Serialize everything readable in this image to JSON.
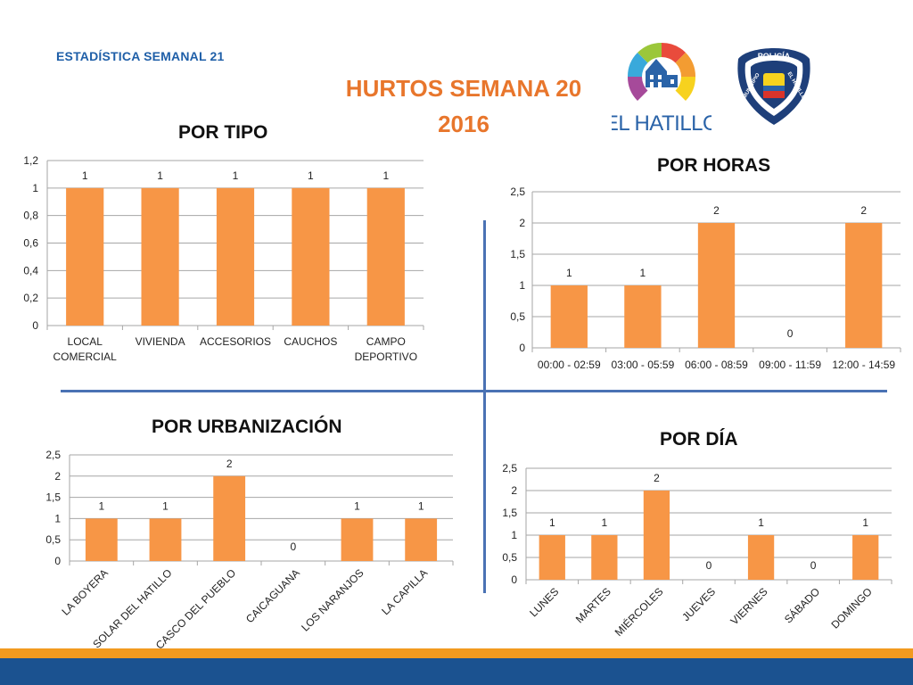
{
  "header": {
    "label": "ESTADÍSTICA SEMANAL 21",
    "title": "HURTOS SEMANA 20",
    "year": "2016"
  },
  "logos": {
    "municipality": "EL HATILLO",
    "police_top": "POLICÍA",
    "police_left": "MUNICIPIO",
    "police_right": "EL HATILLO"
  },
  "colors": {
    "bar": "#f79646",
    "title_orange": "#e8762c",
    "header_blue": "#1f5fa8",
    "divider": "#4a72b4"
  },
  "chart_data": [
    {
      "id": "tipo",
      "type": "bar",
      "title": "POR TIPO",
      "categories": [
        "LOCAL COMERCIAL",
        "VIVIENDA",
        "ACCESORIOS",
        "CAUCHOS",
        "CAMPO DEPORTIVO"
      ],
      "values": [
        1,
        1,
        1,
        1,
        1
      ],
      "ylim": [
        0,
        1.2
      ],
      "yticks": [
        "0",
        "0,2",
        "0,4",
        "0,6",
        "0,8",
        "1",
        "1,2"
      ],
      "xlabel": "",
      "ylabel": "",
      "grid": true
    },
    {
      "id": "horas",
      "type": "bar",
      "title": "POR HORAS",
      "categories": [
        "00:00 - 02:59",
        "03:00 - 05:59",
        "06:00 - 08:59",
        "09:00 - 11:59",
        "12:00 - 14:59"
      ],
      "values": [
        1,
        1,
        2,
        0,
        2
      ],
      "ylim": [
        0,
        2.5
      ],
      "yticks": [
        "0",
        "0,5",
        "1",
        "1,5",
        "2",
        "2,5"
      ],
      "xlabel": "",
      "ylabel": "",
      "grid": true
    },
    {
      "id": "urbanizacion",
      "type": "bar",
      "title": "POR URBANIZACIÓN",
      "categories": [
        "LA BOYERA",
        "SOLAR DEL HATILLO",
        "CASCO DEL PUEBLO",
        "CAICAGUANA",
        "LOS NARANJOS",
        "LA CAPILLA"
      ],
      "values": [
        1,
        1,
        2,
        0,
        1,
        1
      ],
      "ylim": [
        0,
        2.5
      ],
      "yticks": [
        "0",
        "0,5",
        "1",
        "1,5",
        "2",
        "2,5"
      ],
      "xlabel": "",
      "ylabel": "",
      "grid": true
    },
    {
      "id": "dia",
      "type": "bar",
      "title": "POR DÍA",
      "categories": [
        "LUNES",
        "MARTES",
        "MIÉRCOLES",
        "JUEVES",
        "VIERNES",
        "SÁBADO",
        "DOMINGO"
      ],
      "values": [
        1,
        1,
        2,
        0,
        1,
        0,
        1
      ],
      "ylim": [
        0,
        2.5
      ],
      "yticks": [
        "0",
        "0,5",
        "1",
        "1,5",
        "2",
        "2,5"
      ],
      "xlabel": "",
      "ylabel": "",
      "grid": true
    }
  ]
}
